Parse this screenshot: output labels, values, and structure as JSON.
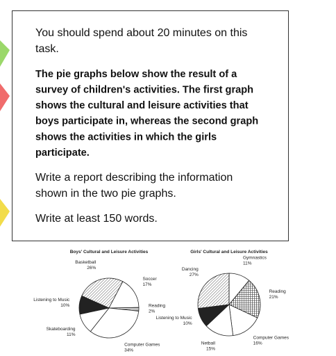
{
  "prompt": {
    "paragraphs": [
      [
        "You should spend about 20 minutes on this",
        "task."
      ],
      [
        "The pie graphs below show the result of a",
        "survey of children's activities. The first graph",
        "shows the cultural and leisure activities that",
        "boys participate in, whereas the second graph",
        "shows the activities in which the girls",
        "participate."
      ],
      [
        "Write a report describing the information",
        "shown in the two pie graphs."
      ],
      [
        "Write at least 150 words."
      ]
    ]
  },
  "chart_data": [
    {
      "type": "pie",
      "title": "Boys' Cultural and Leisure Activities",
      "categories": [
        "Basketball",
        "Soccer",
        "Reading",
        "Computer Games",
        "Skateboarding",
        "Listening to Music"
      ],
      "values": [
        26,
        17,
        2,
        34,
        11,
        10
      ],
      "value_labels": [
        "26%",
        "17%",
        "2%",
        "34%",
        "11%",
        "10%"
      ],
      "fills": [
        "diagonal-hatch",
        "white",
        "horizontal-hatch",
        "white",
        "white",
        "black"
      ]
    },
    {
      "type": "pie",
      "title": "Girls' Cultural and Leisure Activities",
      "categories": [
        "Gymnastics",
        "Reading",
        "Computer Games",
        "Netball",
        "Listening to Music",
        "Dancing"
      ],
      "values": [
        11,
        21,
        16,
        15,
        10,
        27
      ],
      "value_labels": [
        "11%",
        "21%",
        "16%",
        "15%",
        "10%",
        "27%"
      ],
      "fills": [
        "white",
        "cross-hatch",
        "white",
        "white",
        "black",
        "diagonal-hatch"
      ]
    }
  ]
}
